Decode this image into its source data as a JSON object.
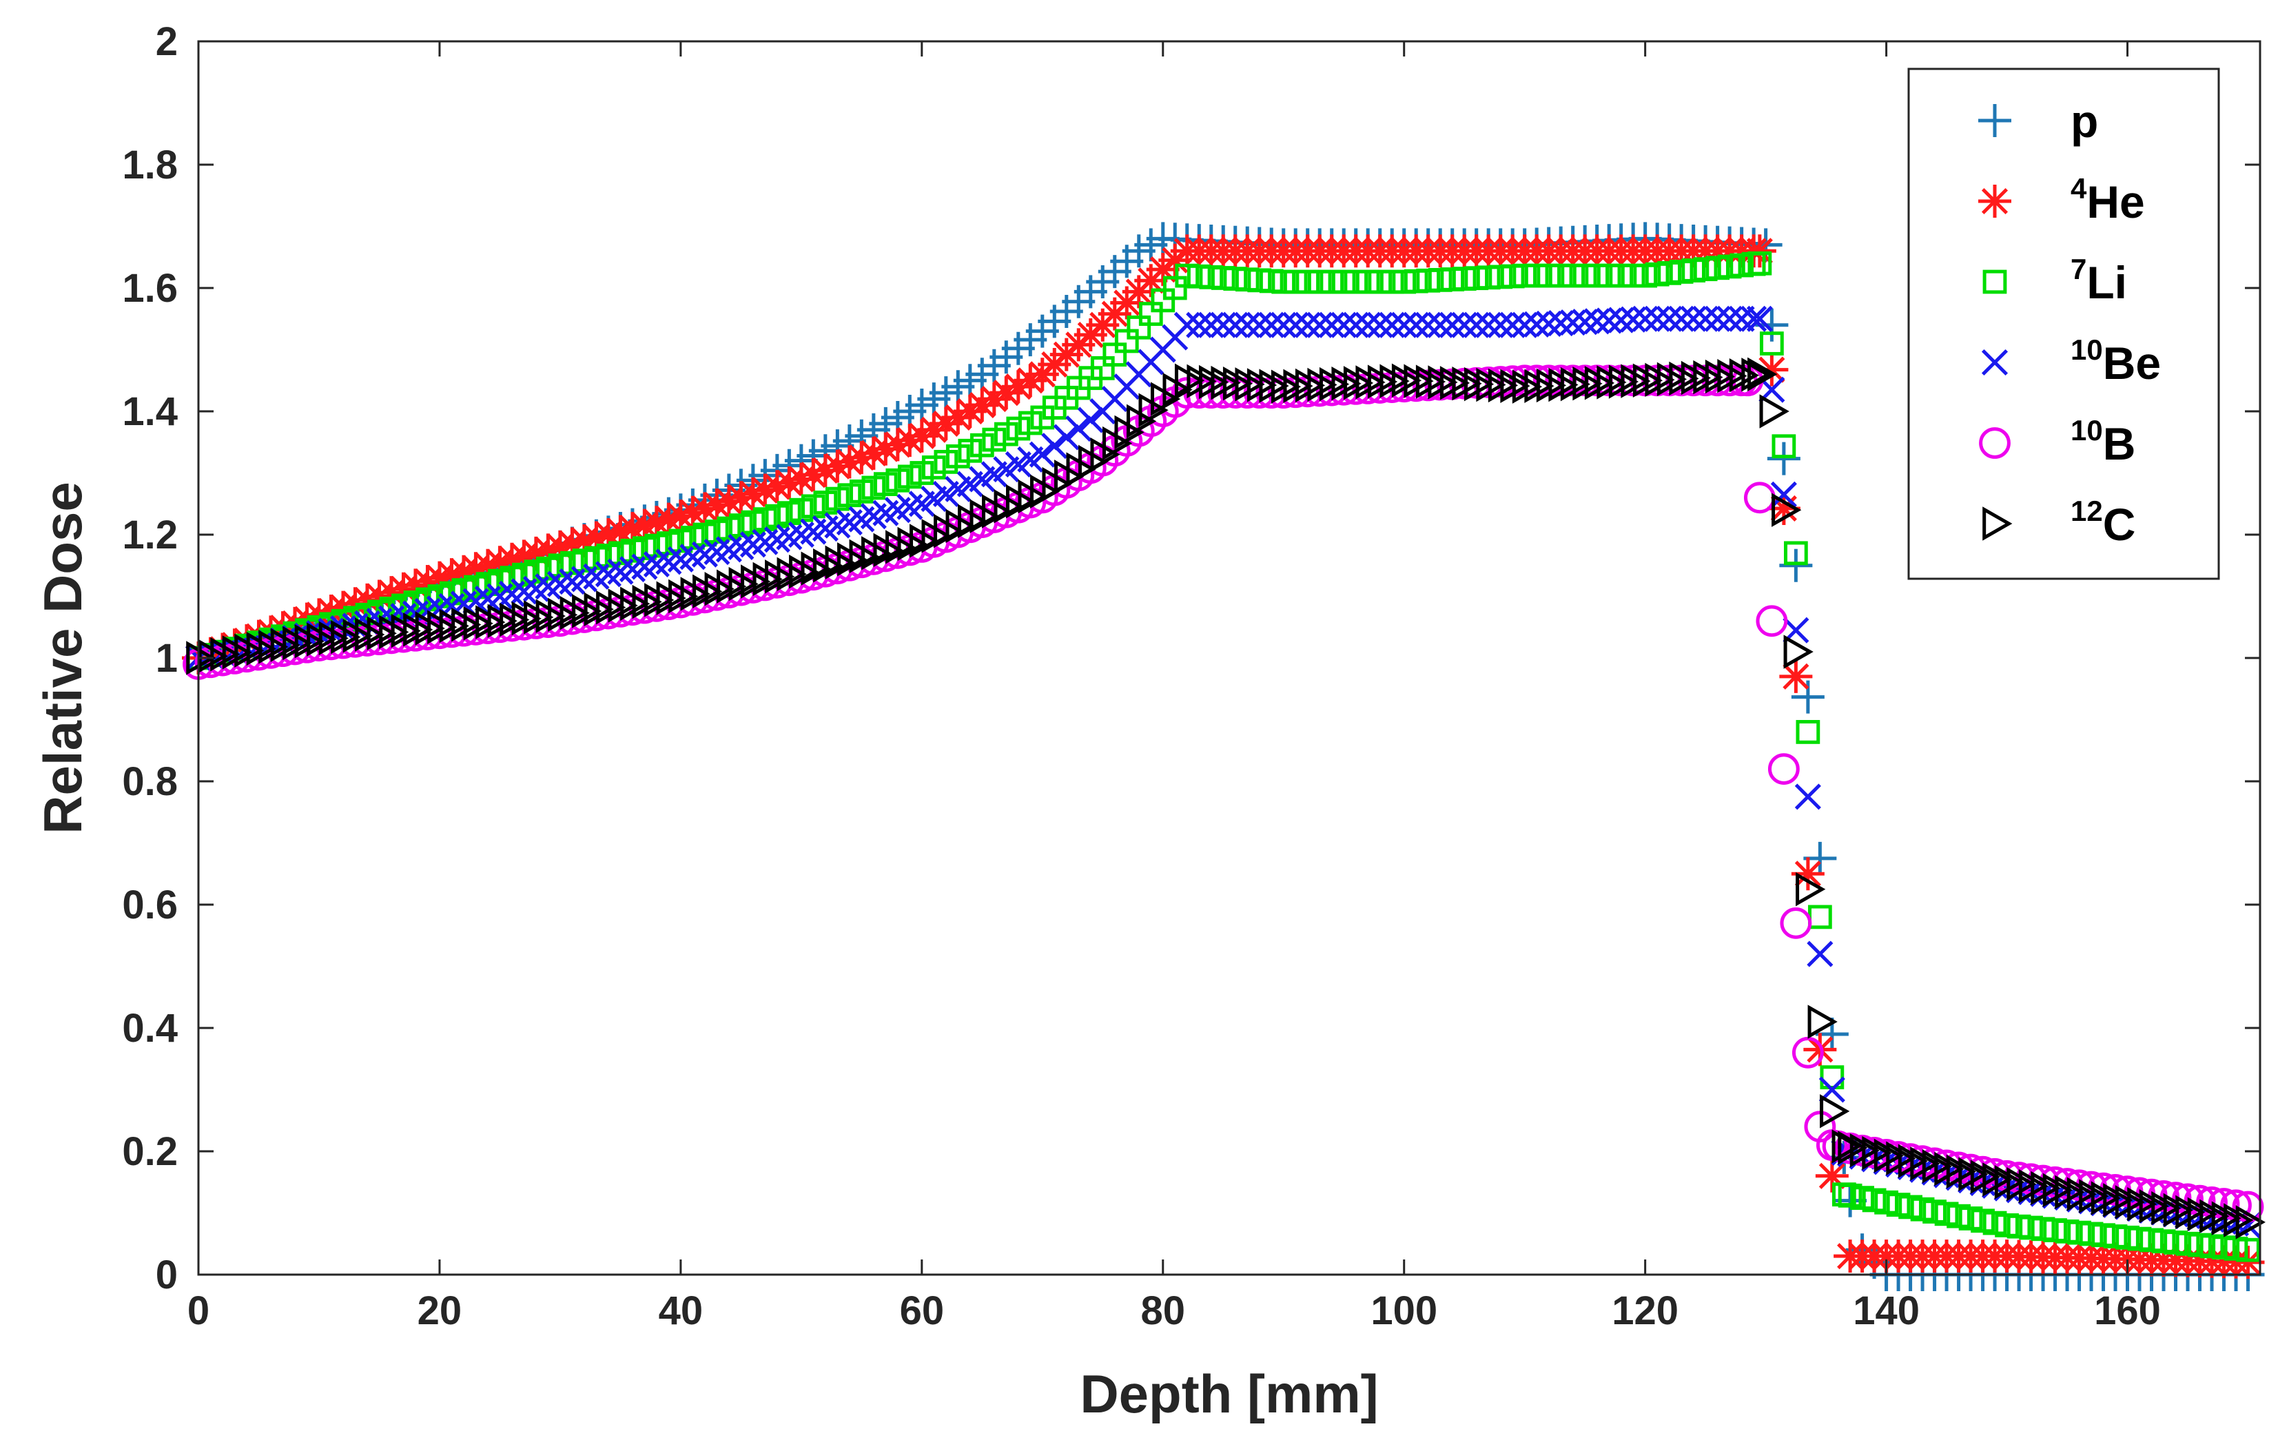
{
  "chart_data": {
    "type": "scatter",
    "title": "",
    "xlabel": "Depth [mm]",
    "ylabel": "Relative Dose",
    "xlim": [
      0,
      171
    ],
    "ylim": [
      0,
      2
    ],
    "xticks": [
      0,
      20,
      40,
      60,
      80,
      100,
      120,
      140,
      160
    ],
    "yticks": [
      0,
      0.2,
      0.4,
      0.6,
      0.8,
      1,
      1.2,
      1.4,
      1.6,
      1.8,
      2
    ],
    "xtick_labels": [
      "0",
      "20",
      "40",
      "60",
      "80",
      "100",
      "120",
      "140",
      "160"
    ],
    "ytick_labels": [
      "0",
      "0.2",
      "0.4",
      "0.6",
      "0.8",
      "1",
      "1.2",
      "1.4",
      "1.6",
      "1.8",
      "2"
    ],
    "grid": false,
    "legend_position": "top-right",
    "series": [
      {
        "name": "p",
        "mass": "",
        "symbol": "p",
        "marker": "plus",
        "color": "#1f77b4",
        "plateau": 1.67,
        "start": 130.5,
        "end": 136.5,
        "tail_start": 0.0,
        "tail_end": 0.0,
        "points": [
          [
            0,
            1.0
          ],
          [
            5,
            1.03
          ],
          [
            10,
            1.06
          ],
          [
            15,
            1.09
          ],
          [
            20,
            1.12
          ],
          [
            25,
            1.15
          ],
          [
            30,
            1.18
          ],
          [
            35,
            1.21
          ],
          [
            40,
            1.24
          ],
          [
            45,
            1.28
          ],
          [
            50,
            1.32
          ],
          [
            55,
            1.36
          ],
          [
            60,
            1.41
          ],
          [
            65,
            1.46
          ],
          [
            70,
            1.53
          ],
          [
            75,
            1.61
          ],
          [
            78,
            1.66
          ],
          [
            80,
            1.68
          ],
          [
            90,
            1.67
          ],
          [
            100,
            1.67
          ],
          [
            110,
            1.67
          ],
          [
            120,
            1.68
          ],
          [
            130,
            1.67
          ],
          [
            131,
            1.41
          ],
          [
            132.5,
            1.15
          ],
          [
            134,
            0.83
          ],
          [
            135,
            0.52
          ],
          [
            136,
            0.26
          ],
          [
            137,
            0.12
          ],
          [
            138,
            0.04
          ],
          [
            140,
            0.0
          ],
          [
            150,
            0.0
          ],
          [
            160,
            0.0
          ],
          [
            170,
            0.0
          ]
        ]
      },
      {
        "name": "4He",
        "mass": "4",
        "symbol": "He",
        "marker": "asterisk",
        "color": "#ff1a1a",
        "plateau": 1.66,
        "start": 129.5,
        "end": 136,
        "tail_start": 0.03,
        "tail_end": 0.02,
        "points": [
          [
            0,
            1.0
          ],
          [
            10,
            1.07
          ],
          [
            20,
            1.13
          ],
          [
            30,
            1.18
          ],
          [
            40,
            1.23
          ],
          [
            50,
            1.29
          ],
          [
            60,
            1.36
          ],
          [
            70,
            1.46
          ],
          [
            75,
            1.54
          ],
          [
            80,
            1.63
          ],
          [
            82,
            1.66
          ],
          [
            90,
            1.66
          ],
          [
            100,
            1.66
          ],
          [
            110,
            1.66
          ],
          [
            120,
            1.66
          ],
          [
            129.5,
            1.66
          ],
          [
            130,
            1.58
          ],
          [
            132,
            1.13
          ],
          [
            133,
            0.81
          ],
          [
            134,
            0.49
          ],
          [
            135,
            0.24
          ],
          [
            136,
            0.08
          ],
          [
            137,
            0.03
          ],
          [
            150,
            0.03
          ],
          [
            170,
            0.02
          ]
        ]
      },
      {
        "name": "7Li",
        "mass": "7",
        "symbol": "Li",
        "marker": "square",
        "color": "#00dd00",
        "plateau": 1.62,
        "start": 129.5,
        "end": 136.5,
        "tail_start": 0.13,
        "tail_end": 0.04,
        "points": [
          [
            0,
            1.0
          ],
          [
            10,
            1.05
          ],
          [
            20,
            1.1
          ],
          [
            30,
            1.15
          ],
          [
            40,
            1.19
          ],
          [
            50,
            1.24
          ],
          [
            60,
            1.3
          ],
          [
            70,
            1.39
          ],
          [
            75,
            1.47
          ],
          [
            80,
            1.58
          ],
          [
            82,
            1.62
          ],
          [
            90,
            1.61
          ],
          [
            100,
            1.61
          ],
          [
            110,
            1.62
          ],
          [
            120,
            1.62
          ],
          [
            129.5,
            1.64
          ],
          [
            130,
            1.59
          ],
          [
            131,
            1.43
          ],
          [
            132.5,
            1.17
          ],
          [
            133.5,
            0.88
          ],
          [
            134.5,
            0.58
          ],
          [
            135.5,
            0.32
          ],
          [
            136.5,
            0.13
          ],
          [
            150,
            0.08
          ],
          [
            170,
            0.04
          ]
        ]
      },
      {
        "name": "10Be",
        "mass": "10",
        "symbol": "Be",
        "marker": "cross",
        "color": "#1a1aee",
        "plateau": 1.54,
        "start": 129.5,
        "end": 136.5,
        "tail_start": 0.2,
        "tail_end": 0.08,
        "points": [
          [
            0,
            1.0
          ],
          [
            10,
            1.04
          ],
          [
            20,
            1.08
          ],
          [
            30,
            1.12
          ],
          [
            40,
            1.16
          ],
          [
            50,
            1.2
          ],
          [
            60,
            1.25
          ],
          [
            70,
            1.33
          ],
          [
            75,
            1.4
          ],
          [
            80,
            1.5
          ],
          [
            82,
            1.54
          ],
          [
            90,
            1.54
          ],
          [
            100,
            1.54
          ],
          [
            110,
            1.54
          ],
          [
            120,
            1.55
          ],
          [
            129.5,
            1.55
          ],
          [
            130,
            1.52
          ],
          [
            132,
            1.18
          ],
          [
            133,
            0.91
          ],
          [
            134,
            0.64
          ],
          [
            135,
            0.4
          ],
          [
            136,
            0.2
          ],
          [
            150,
            0.14
          ],
          [
            170,
            0.08
          ]
        ]
      },
      {
        "name": "10B",
        "mass": "10",
        "symbol": "B",
        "marker": "circle",
        "color": "#ee00ee",
        "plateau": 1.43,
        "start": 128.5,
        "end": 135.5,
        "tail_start": 0.22,
        "tail_end": 0.11,
        "points": [
          [
            0,
            0.99
          ],
          [
            10,
            1.02
          ],
          [
            20,
            1.04
          ],
          [
            30,
            1.06
          ],
          [
            40,
            1.09
          ],
          [
            50,
            1.13
          ],
          [
            60,
            1.18
          ],
          [
            70,
            1.26
          ],
          [
            75,
            1.32
          ],
          [
            80,
            1.4
          ],
          [
            82,
            1.43
          ],
          [
            90,
            1.43
          ],
          [
            100,
            1.44
          ],
          [
            110,
            1.45
          ],
          [
            120,
            1.45
          ],
          [
            128.5,
            1.45
          ],
          [
            129,
            1.39
          ],
          [
            129.5,
            1.26
          ],
          [
            130.5,
            1.06
          ],
          [
            131.5,
            0.82
          ],
          [
            132.5,
            0.57
          ],
          [
            133.5,
            0.36
          ],
          [
            134.5,
            0.24
          ],
          [
            135.5,
            0.21
          ],
          [
            150,
            0.16
          ],
          [
            170,
            0.11
          ]
        ]
      },
      {
        "name": "12C",
        "mass": "12",
        "symbol": "C",
        "marker": "triangle-right",
        "color": "#000000",
        "plateau": 1.45,
        "start": 129.5,
        "end": 136.5,
        "tail_start": 0.21,
        "tail_end": 0.085,
        "points": [
          [
            0,
            1.0
          ],
          [
            10,
            1.03
          ],
          [
            20,
            1.05
          ],
          [
            30,
            1.07
          ],
          [
            40,
            1.1
          ],
          [
            50,
            1.14
          ],
          [
            60,
            1.19
          ],
          [
            70,
            1.27
          ],
          [
            75,
            1.33
          ],
          [
            80,
            1.42
          ],
          [
            82,
            1.45
          ],
          [
            90,
            1.44
          ],
          [
            100,
            1.45
          ],
          [
            110,
            1.44
          ],
          [
            120,
            1.45
          ],
          [
            129.5,
            1.46
          ],
          [
            130.5,
            1.4
          ],
          [
            131.5,
            1.24
          ],
          [
            132.5,
            1.01
          ],
          [
            133,
            0.75
          ],
          [
            134,
            0.5
          ],
          [
            135,
            0.32
          ],
          [
            136,
            0.21
          ],
          [
            150,
            0.15
          ],
          [
            170,
            0.085
          ]
        ]
      }
    ]
  }
}
